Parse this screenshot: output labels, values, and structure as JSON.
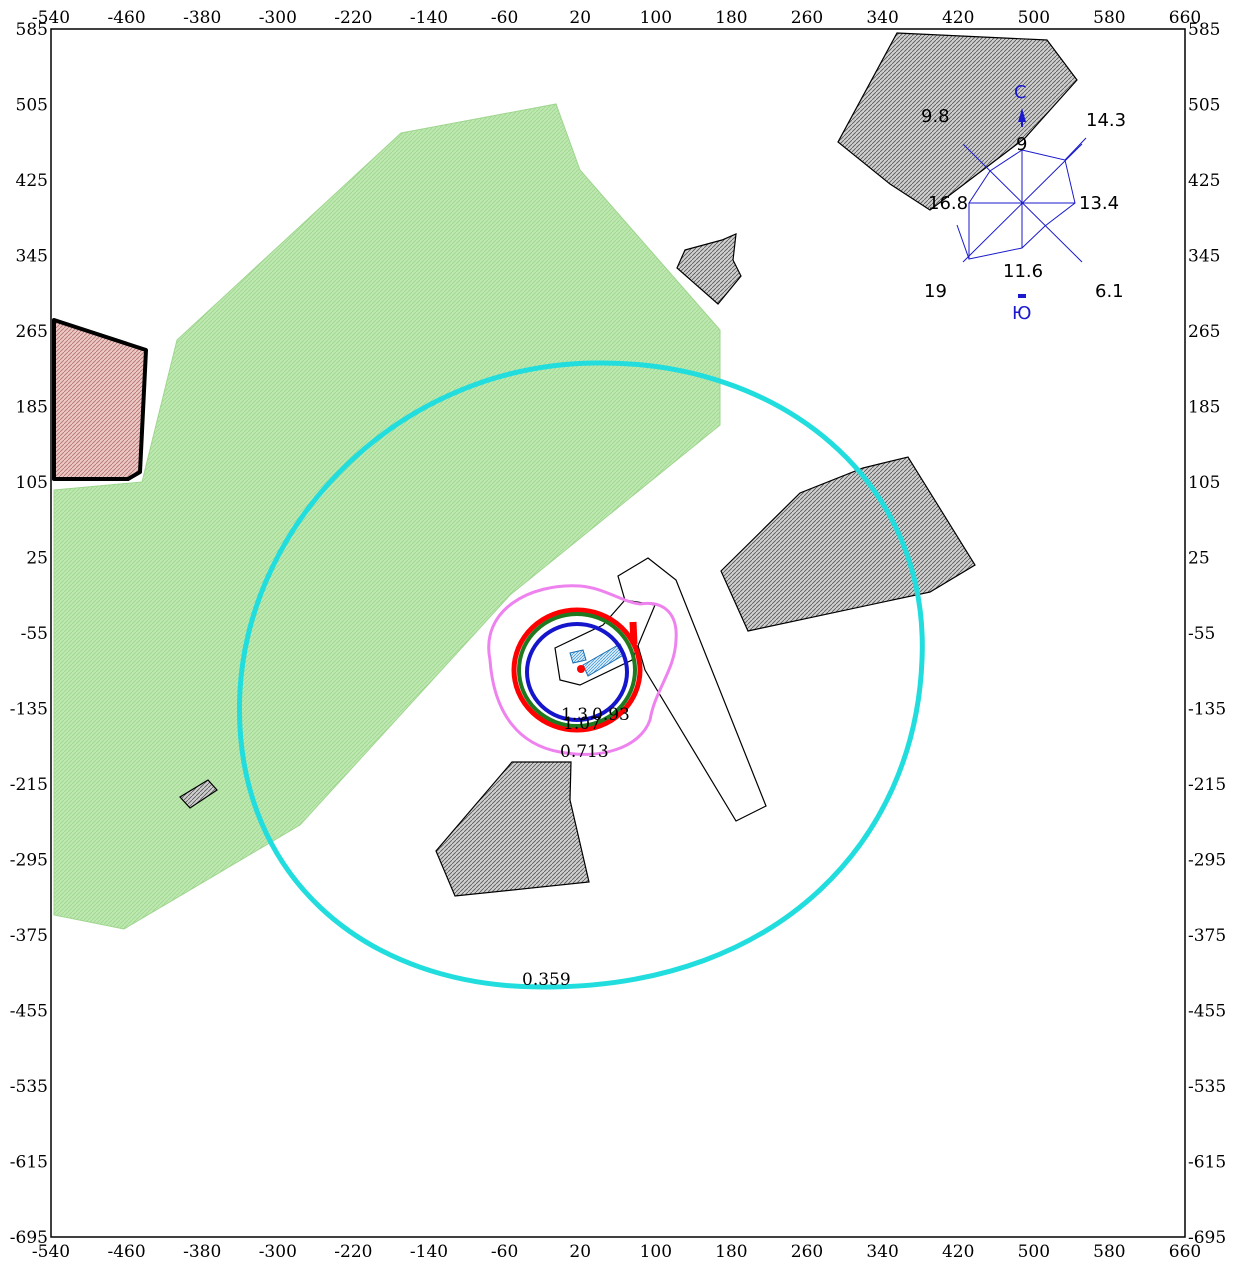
{
  "axes": {
    "x_ticks": [
      "-540",
      "-460",
      "-380",
      "-300",
      "-220",
      "-140",
      "-60",
      "20",
      "100",
      "180",
      "260",
      "340",
      "420",
      "500",
      "580",
      "660"
    ],
    "y_ticks": [
      "585",
      "505",
      "425",
      "345",
      "265",
      "185",
      "105",
      "25",
      "-55",
      "-135",
      "-215",
      "-295",
      "-375",
      "-455",
      "-535",
      "-615",
      "-695"
    ],
    "x_range": [
      -540,
      660
    ],
    "y_range": [
      -695,
      585
    ]
  },
  "isolines": [
    {
      "value": "1.3",
      "color": "#ff0000"
    },
    {
      "value": "1.07",
      "color": "#1f7a1f"
    },
    {
      "value": "0.93",
      "color": "#1515cc"
    },
    {
      "value": "0.713",
      "color": "#ee82ee"
    },
    {
      "value": "0.359",
      "color": "#22dddd"
    }
  ],
  "isoline_labels": {
    "red": "1.3",
    "green": "1.07",
    "blue": "0.93",
    "magenta": "0.713",
    "cyan": "0.359"
  },
  "wind_rose": {
    "north_label": "С",
    "south_label": "Ю",
    "values": {
      "N": "9",
      "NE": "14.3",
      "E": "13.4",
      "SE": "6.1",
      "S": "11.6",
      "SW": "19",
      "W": "16.8",
      "NW": "9.8"
    }
  },
  "colors": {
    "green_zone": "#bde8b0",
    "residential_zone": "#e8c4c0",
    "building": "#c8c8c8",
    "isoline_cyan": "#22dddd",
    "isoline_magenta": "#ee82ee",
    "isoline_red": "#ff0000",
    "isoline_green": "#1f7a1f",
    "isoline_blue": "#1515cc",
    "wind_rose": "#1a1acc"
  }
}
